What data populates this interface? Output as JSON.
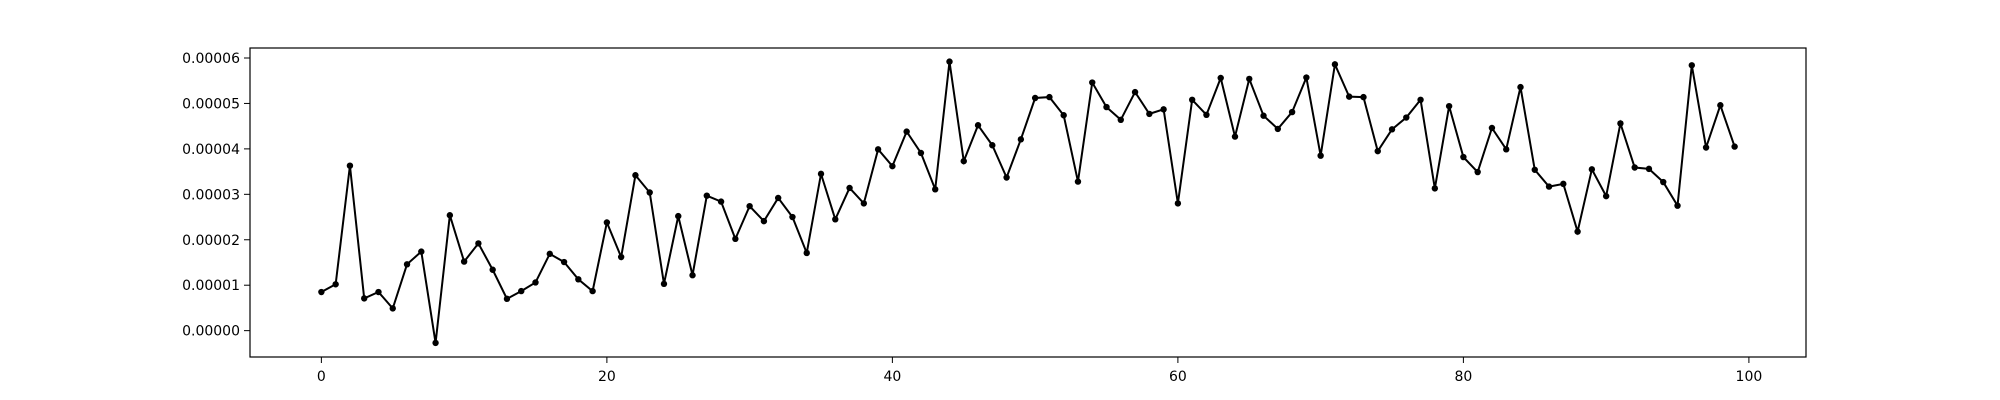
{
  "chart_data": {
    "type": "line",
    "title": "",
    "xlabel": "",
    "ylabel": "",
    "xlim": [
      -5,
      104
    ],
    "ylim": [
      -5.8e-06,
      6.22e-05
    ],
    "grid": false,
    "legend": "none",
    "x_ticks": [
      {
        "value": 0,
        "label": "0"
      },
      {
        "value": 20,
        "label": "20"
      },
      {
        "value": 40,
        "label": "40"
      },
      {
        "value": 60,
        "label": "60"
      },
      {
        "value": 80,
        "label": "80"
      },
      {
        "value": 100,
        "label": "100"
      }
    ],
    "y_ticks": [
      {
        "value": 0,
        "label": "0.00000"
      },
      {
        "value": 1e-05,
        "label": "0.00001"
      },
      {
        "value": 2e-05,
        "label": "0.00002"
      },
      {
        "value": 3e-05,
        "label": "0.00003"
      },
      {
        "value": 4e-05,
        "label": "0.00004"
      },
      {
        "value": 5e-05,
        "label": "0.00005"
      },
      {
        "value": 6e-05,
        "label": "0.00006"
      }
    ],
    "series": [
      {
        "color": "#000000",
        "marker": "dot",
        "x": [
          0,
          1,
          2,
          3,
          4,
          5,
          6,
          7,
          8,
          9,
          10,
          11,
          12,
          13,
          14,
          15,
          16,
          17,
          18,
          19,
          20,
          21,
          22,
          23,
          24,
          25,
          26,
          27,
          28,
          29,
          30,
          31,
          32,
          33,
          34,
          35,
          36,
          37,
          38,
          39,
          40,
          41,
          42,
          43,
          44,
          45,
          46,
          47,
          48,
          49,
          50,
          51,
          52,
          53,
          54,
          55,
          56,
          57,
          58,
          59,
          60,
          61,
          62,
          63,
          64,
          65,
          66,
          67,
          68,
          69,
          70,
          71,
          72,
          73,
          74,
          75,
          76,
          77,
          78,
          79,
          80,
          81,
          82,
          83,
          84,
          85,
          86,
          87,
          88,
          89,
          90,
          91,
          92,
          93,
          94,
          95,
          96,
          97,
          98,
          99
        ],
        "values": [
          8.5e-06,
          1.02e-05,
          3.63e-05,
          7.1e-06,
          8.5e-06,
          4.9e-06,
          1.46e-05,
          1.74e-05,
          -2.7e-06,
          2.54e-05,
          1.52e-05,
          1.92e-05,
          1.34e-05,
          7e-06,
          8.7e-06,
          1.06e-05,
          1.69e-05,
          1.51e-05,
          1.13e-05,
          8.7e-06,
          2.38e-05,
          1.62e-05,
          3.42e-05,
          3.04e-05,
          1.03e-05,
          2.52e-05,
          1.22e-05,
          2.97e-05,
          2.84e-05,
          2.02e-05,
          2.74e-05,
          2.41e-05,
          2.92e-05,
          2.5e-05,
          1.71e-05,
          3.45e-05,
          2.45e-05,
          3.14e-05,
          2.8e-05,
          3.99e-05,
          3.62e-05,
          4.38e-05,
          3.91e-05,
          3.11e-05,
          5.92e-05,
          3.73e-05,
          4.52e-05,
          4.08e-05,
          3.37e-05,
          4.21e-05,
          5.12e-05,
          5.14e-05,
          4.74e-05,
          3.28e-05,
          5.46e-05,
          4.92e-05,
          4.64e-05,
          5.25e-05,
          4.77e-05,
          4.87e-05,
          2.8e-05,
          5.08e-05,
          4.75e-05,
          5.56e-05,
          4.27e-05,
          5.54e-05,
          4.73e-05,
          4.44e-05,
          4.81e-05,
          5.57e-05,
          3.85e-05,
          5.86e-05,
          5.15e-05,
          5.14e-05,
          3.95e-05,
          4.43e-05,
          4.69e-05,
          5.08e-05,
          3.13e-05,
          4.94e-05,
          3.82e-05,
          3.49e-05,
          4.46e-05,
          3.99e-05,
          5.36e-05,
          3.54e-05,
          3.17e-05,
          3.23e-05,
          2.18e-05,
          3.55e-05,
          2.96e-05,
          4.56e-05,
          3.59e-05,
          3.56e-05,
          3.27e-05,
          2.75e-05,
          5.84e-05,
          4.03e-05,
          4.96e-05,
          4.05e-05
        ]
      }
    ]
  }
}
